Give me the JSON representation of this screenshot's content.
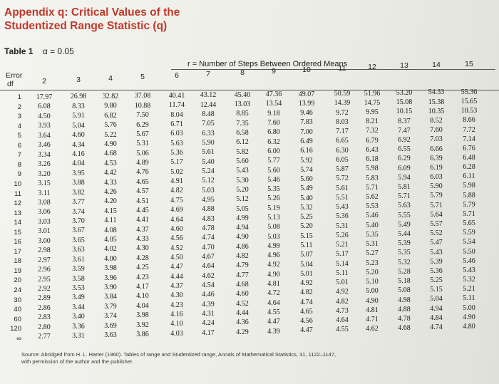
{
  "title_lines": [
    "Appendix q: Critical Values of the",
    "Studentized Range Statistic (q)"
  ],
  "table_label": "Table 1",
  "alpha_label": "α = 0.05",
  "header_steps": "r = Number of Steps Between Ordered Means",
  "header_error": "Error",
  "header_df": "df",
  "columns": [
    "2",
    "3",
    "4",
    "5",
    "6",
    "7",
    "8",
    "9",
    "10",
    "11",
    "12",
    "13",
    "14",
    "15"
  ],
  "rows": [
    {
      "df": "1",
      "v": [
        "17.97",
        "26.98",
        "32.82",
        "37.08",
        "40.41",
        "43.12",
        "45.40",
        "47.36",
        "49.07",
        "50.59",
        "51.96",
        "53.20",
        "54.33",
        "55.36"
      ]
    },
    {
      "df": "2",
      "v": [
        "6.08",
        "8.33",
        "9.80",
        "10.88",
        "11.74",
        "12.44",
        "13.03",
        "13.54",
        "13.99",
        "14.39",
        "14.75",
        "15.08",
        "15.38",
        "15.65"
      ]
    },
    {
      "df": "3",
      "v": [
        "4.50",
        "5.91",
        "6.82",
        "7.50",
        "8.04",
        "8.48",
        "8.85",
        "9.18",
        "9.46",
        "9.72",
        "9.95",
        "10.15",
        "10.35",
        "10.53"
      ]
    },
    {
      "df": "4",
      "v": [
        "3.93",
        "5.04",
        "5.76",
        "6.29",
        "6.71",
        "7.05",
        "7.35",
        "7.60",
        "7.83",
        "8.03",
        "8.21",
        "8.37",
        "8.52",
        "8.66"
      ]
    },
    {
      "df": "5",
      "v": [
        "3.64",
        "4.60",
        "5.22",
        "5.67",
        "6.03",
        "6.33",
        "6.58",
        "6.80",
        "7.00",
        "7.17",
        "7.32",
        "7.47",
        "7.60",
        "7.72"
      ]
    },
    {
      "df": "6",
      "v": [
        "3.46",
        "4.34",
        "4.90",
        "5.31",
        "5.63",
        "5.90",
        "6.12",
        "6.32",
        "6.49",
        "6.65",
        "6.79",
        "6.92",
        "7.03",
        "7.14"
      ]
    },
    {
      "df": "7",
      "v": [
        "3.34",
        "4.16",
        "4.68",
        "5.06",
        "5.36",
        "5.61",
        "5.82",
        "6.00",
        "6.16",
        "6.30",
        "6.43",
        "6.55",
        "6.66",
        "6.76"
      ]
    },
    {
      "df": "8",
      "v": [
        "3.26",
        "4.04",
        "4.53",
        "4.89",
        "5.17",
        "5.40",
        "5.60",
        "5.77",
        "5.92",
        "6.05",
        "6.18",
        "6.29",
        "6.39",
        "6.48"
      ]
    },
    {
      "df": "9",
      "v": [
        "3.20",
        "3.95",
        "4.42",
        "4.76",
        "5.02",
        "5.24",
        "5.43",
        "5.60",
        "5.74",
        "5.87",
        "5.98",
        "6.09",
        "6.19",
        "6.28"
      ]
    },
    {
      "df": "10",
      "v": [
        "3.15",
        "3.88",
        "4.33",
        "4.65",
        "4.91",
        "5.12",
        "5.30",
        "5.46",
        "5.60",
        "5.72",
        "5.83",
        "5.94",
        "6.03",
        "6.11"
      ]
    },
    {
      "df": "11",
      "v": [
        "3.11",
        "3.82",
        "4.26",
        "4.57",
        "4.82",
        "5.03",
        "5.20",
        "5.35",
        "5.49",
        "5.61",
        "5.71",
        "5.81",
        "5.90",
        "5.98"
      ]
    },
    {
      "df": "12",
      "v": [
        "3.08",
        "3.77",
        "4.20",
        "4.51",
        "4.75",
        "4.95",
        "5.12",
        "5.26",
        "5.40",
        "5.51",
        "5.62",
        "5.71",
        "5.79",
        "5.88"
      ]
    },
    {
      "df": "13",
      "v": [
        "3.06",
        "3.74",
        "4.15",
        "4.45",
        "4.69",
        "4.88",
        "5.05",
        "5.19",
        "5.32",
        "5.43",
        "5.53",
        "5.63",
        "5.71",
        "5.79"
      ]
    },
    {
      "df": "14",
      "v": [
        "3.03",
        "3.70",
        "4.11",
        "4.41",
        "4.64",
        "4.83",
        "4.99",
        "5.13",
        "5.25",
        "5.36",
        "5.46",
        "5.55",
        "5.64",
        "5.71"
      ]
    },
    {
      "df": "15",
      "v": [
        "3.01",
        "3.67",
        "4.08",
        "4.37",
        "4.60",
        "4.78",
        "4.94",
        "5.08",
        "5.20",
        "5.31",
        "5.40",
        "5.49",
        "5.57",
        "5.65"
      ]
    },
    {
      "df": "16",
      "v": [
        "3.00",
        "3.65",
        "4.05",
        "4.33",
        "4.56",
        "4.74",
        "4.90",
        "5.03",
        "5.15",
        "5.26",
        "5.35",
        "5.44",
        "5.52",
        "5.59"
      ]
    },
    {
      "df": "17",
      "v": [
        "2.98",
        "3.63",
        "4.02",
        "4.30",
        "4.52",
        "4.70",
        "4.86",
        "4.99",
        "5.11",
        "5.21",
        "5.31",
        "5.39",
        "5.47",
        "5.54"
      ]
    },
    {
      "df": "18",
      "v": [
        "2.97",
        "3.61",
        "4.00",
        "4.28",
        "4.50",
        "4.67",
        "4.82",
        "4.96",
        "5.07",
        "5.17",
        "5.27",
        "5.35",
        "5.43",
        "5.50"
      ]
    },
    {
      "df": "19",
      "v": [
        "2.96",
        "3.59",
        "3.98",
        "4.25",
        "4.47",
        "4.64",
        "4.79",
        "4.92",
        "5.04",
        "5.14",
        "5.23",
        "5.32",
        "5.39",
        "5.46"
      ]
    },
    {
      "df": "20",
      "v": [
        "2.95",
        "3.58",
        "3.96",
        "4.23",
        "4.44",
        "4.62",
        "4.77",
        "4.90",
        "5.01",
        "5.11",
        "5.20",
        "5.28",
        "5.36",
        "5.43"
      ]
    },
    {
      "df": "24",
      "v": [
        "2.92",
        "3.53",
        "3.90",
        "4.17",
        "4.37",
        "4.54",
        "4.68",
        "4.81",
        "4.92",
        "5.01",
        "5.10",
        "5.18",
        "5.25",
        "5.32"
      ]
    },
    {
      "df": "30",
      "v": [
        "2.89",
        "3.49",
        "3.84",
        "4.10",
        "4.30",
        "4.46",
        "4.60",
        "4.72",
        "4.82",
        "4.92",
        "5.00",
        "5.08",
        "5.15",
        "5.21"
      ]
    },
    {
      "df": "40",
      "v": [
        "2.86",
        "3.44",
        "3.79",
        "4.04",
        "4.23",
        "4.39",
        "4.52",
        "4.64",
        "4.74",
        "4.82",
        "4.90",
        "4.98",
        "5.04",
        "5.11"
      ]
    },
    {
      "df": "60",
      "v": [
        "2.83",
        "3.40",
        "3.74",
        "3.98",
        "4.16",
        "4.31",
        "4.44",
        "4.55",
        "4.65",
        "4.73",
        "4.81",
        "4.88",
        "4.94",
        "5.00"
      ]
    },
    {
      "df": "120",
      "v": [
        "2.80",
        "3.36",
        "3.69",
        "3.92",
        "4.10",
        "4.24",
        "4.36",
        "4.47",
        "4.56",
        "4.64",
        "4.71",
        "4.78",
        "4.84",
        "4.90"
      ]
    },
    {
      "df": "∞",
      "v": [
        "2.77",
        "3.31",
        "3.63",
        "3.86",
        "4.03",
        "4.17",
        "4.29",
        "4.39",
        "4.47",
        "4.55",
        "4.62",
        "4.68",
        "4.74",
        "4.80"
      ]
    }
  ],
  "source_line1": "Source: Abridged from H. L. Harter (1960). Tables of range and Studentized range, Annals of Mathematical Statistics, 31, 1122–1147,",
  "source_line2": "with permission of the author and the publisher."
}
